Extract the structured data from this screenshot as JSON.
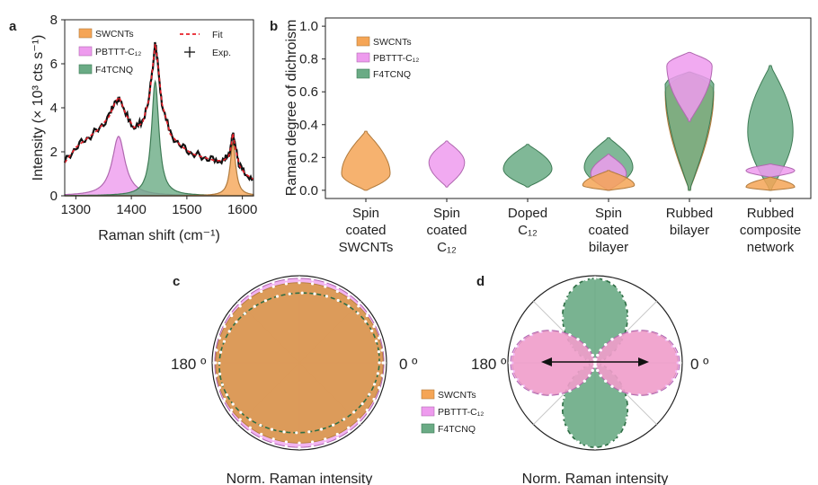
{
  "colors": {
    "swcnts": "#f5a556",
    "pbttt": "#ee9bee",
    "f4tcnq": "#6aab85",
    "fit": "#e8202a",
    "exp": "#111111"
  },
  "chart_data": [
    {
      "panel": "a",
      "type": "line",
      "xlabel": "Raman shift (cm⁻¹)",
      "ylabel": "Intensity (× 10³ cts s⁻¹)",
      "xlim": [
        1280,
        1620
      ],
      "ylim": [
        0,
        8
      ],
      "xticks": [
        1300,
        1400,
        1500,
        1600
      ],
      "yticks": [
        0,
        2,
        4,
        6,
        8
      ],
      "legend_left": [
        "SWCNTs",
        "PBTTT-C₁₂",
        "F4TCNQ"
      ],
      "legend_right": [
        "Fit",
        "Exp."
      ],
      "peaks": [
        {
          "name": "PBTTT-C₁₂",
          "center": 1377,
          "amplitude": 2.7,
          "width": 14
        },
        {
          "name": "F4TCNQ",
          "center": 1443,
          "amplitude": 5.2,
          "width": 8
        },
        {
          "name": "SWCNTs",
          "center": 1583,
          "amplitude": 2.4,
          "width": 6
        }
      ],
      "fit_x": [
        1280,
        1300,
        1320,
        1340,
        1360,
        1370,
        1378,
        1390,
        1405,
        1420,
        1432,
        1440,
        1443,
        1447,
        1455,
        1470,
        1490,
        1510,
        1530,
        1550,
        1565,
        1575,
        1580,
        1583,
        1587,
        1595,
        1605,
        1620
      ],
      "fit_y": [
        1.5,
        2.2,
        2.6,
        3.0,
        3.6,
        4.2,
        4.5,
        3.7,
        3.1,
        3.3,
        4.4,
        6.2,
        6.9,
        6.2,
        4.2,
        2.8,
        2.25,
        1.9,
        1.75,
        1.6,
        1.6,
        1.75,
        2.3,
        2.85,
        2.2,
        1.35,
        1.0,
        0.75
      ]
    },
    {
      "panel": "b",
      "type": "violin",
      "ylabel": "Raman degree of dichroism",
      "ylim": [
        -0.05,
        1.05
      ],
      "yticks": [
        "0.0",
        "0.2",
        "0.4",
        "0.6",
        "0.8",
        "1.0"
      ],
      "categories": [
        [
          "Spin",
          "coated",
          "SWCNTs"
        ],
        [
          "Spin",
          "coated",
          "C₁₂"
        ],
        [
          "Doped",
          "C₁₂"
        ],
        [
          "Spin",
          "coated",
          "bilayer"
        ],
        [
          "Rubbed",
          "bilayer"
        ],
        [
          "Rubbed",
          "composite",
          "network"
        ]
      ],
      "legend": [
        "SWCNTs",
        "PBTTT-C₁₂",
        "F4TCNQ"
      ],
      "violins": [
        {
          "category": 0,
          "series": "SWCNTs",
          "min": 0.0,
          "max": 0.36,
          "mode": 0.1,
          "maxwidth": 0.3
        },
        {
          "category": 1,
          "series": "PBTTT-C₁₂",
          "min": 0.02,
          "max": 0.3,
          "mode": 0.17,
          "maxwidth": 0.22
        },
        {
          "category": 2,
          "series": "F4TCNQ",
          "min": 0.02,
          "max": 0.28,
          "mode": 0.13,
          "maxwidth": 0.3
        },
        {
          "category": 3,
          "series": "F4TCNQ",
          "min": 0.0,
          "max": 0.32,
          "mode": 0.14,
          "maxwidth": 0.3
        },
        {
          "category": 3,
          "series": "PBTTT-C₁₂",
          "min": 0.0,
          "max": 0.22,
          "mode": 0.1,
          "maxwidth": 0.22
        },
        {
          "category": 3,
          "series": "SWCNTs",
          "min": 0.0,
          "max": 0.12,
          "mode": 0.03,
          "maxwidth": 0.32
        },
        {
          "category": 4,
          "series": "SWCNTs",
          "min": 0.0,
          "max": 0.72,
          "mode": 0.6,
          "maxwidth": 0.3
        },
        {
          "category": 4,
          "series": "F4TCNQ",
          "min": 0.0,
          "max": 0.72,
          "mode": 0.65,
          "maxwidth": 0.3
        },
        {
          "category": 4,
          "series": "PBTTT-C₁₂",
          "min": 0.42,
          "max": 0.84,
          "mode": 0.76,
          "maxwidth": 0.28
        },
        {
          "category": 5,
          "series": "F4TCNQ",
          "min": 0.0,
          "max": 0.76,
          "mode": 0.36,
          "maxwidth": 0.28
        },
        {
          "category": 5,
          "series": "PBTTT-C₁₂",
          "min": 0.08,
          "max": 0.16,
          "mode": 0.12,
          "maxwidth": 0.3
        },
        {
          "category": 5,
          "series": "SWCNTs",
          "min": 0.0,
          "max": 0.08,
          "mode": 0.02,
          "maxwidth": 0.3
        }
      ]
    },
    {
      "panel": "c",
      "type": "polar",
      "angle_labels": [
        "180 º",
        "0 º"
      ],
      "xlabel": "Norm. Raman intensity",
      "legend": [
        "SWCNTs",
        "PBTTT-C₁₂",
        "F4TCNQ"
      ],
      "series": [
        {
          "name": "SWCNTs",
          "a": 0.96,
          "b": 0.92,
          "tilt": 0
        },
        {
          "name": "PBTTT-C₁₂",
          "a": 0.97,
          "b": 0.97,
          "tilt": 0
        },
        {
          "name": "F4TCNQ",
          "a": 0.92,
          "b": 0.8,
          "tilt": 8
        }
      ]
    },
    {
      "panel": "d",
      "type": "polar",
      "angle_labels": [
        "180 º",
        "0 º"
      ],
      "xlabel": "Norm. Raman intensity",
      "series": [
        {
          "name": "F4TCNQ",
          "shape": "cos2",
          "axis_deg": 90,
          "r": 0.97
        },
        {
          "name": "SWCNTs",
          "shape": "cos2",
          "axis_deg": 0,
          "r": 0.95
        },
        {
          "name": "PBTTT-C₁₂",
          "shape": "cos2",
          "axis_deg": 0,
          "r": 0.97
        }
      ]
    }
  ]
}
